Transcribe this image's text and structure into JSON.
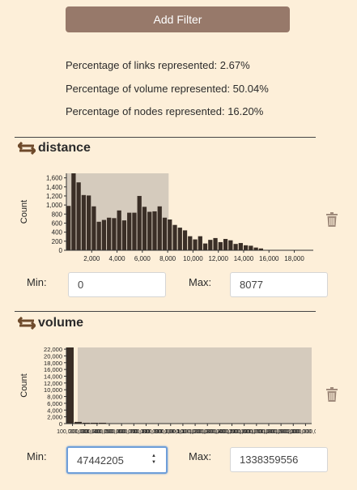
{
  "add_filter_label": "Add Filter",
  "stats": {
    "links": "Percentage of links represented: 2.67%",
    "volume": "Percentage of volume represented: 50.04%",
    "nodes": "Percentage of nodes represented: 16.20%"
  },
  "distance": {
    "title": "distance",
    "min_label": "Min:",
    "max_label": "Max:",
    "min_value": "0",
    "max_value": "8077",
    "selection_range": [
      0,
      8077
    ],
    "chart_data": {
      "type": "bar",
      "ylabel": "Count",
      "xlim": [
        0,
        19500
      ],
      "ylim": [
        0,
        1700
      ],
      "y_ticks": [
        0,
        200,
        400,
        600,
        800,
        1000,
        1200,
        1400,
        1600
      ],
      "y_tick_labels": [
        "0",
        "200",
        "400",
        "600",
        "800",
        "1,000",
        "1,200",
        "1,400",
        "1,600"
      ],
      "x_ticks": [
        2000,
        4000,
        6000,
        8000,
        10000,
        12000,
        14000,
        16000,
        18000
      ],
      "x_tick_labels": [
        "2,000",
        "4,000",
        "6,000",
        "8,000",
        "10,000",
        "12,000",
        "14,000",
        "16,000",
        "18,000"
      ],
      "bin_width": 400,
      "values": [
        980,
        1700,
        1500,
        1220,
        1210,
        970,
        630,
        670,
        720,
        710,
        880,
        660,
        830,
        830,
        1200,
        960,
        850,
        860,
        970,
        720,
        680,
        560,
        500,
        440,
        310,
        240,
        310,
        150,
        230,
        270,
        180,
        250,
        220,
        140,
        160,
        110,
        100,
        60,
        40
      ]
    }
  },
  "volume": {
    "title": "volume",
    "min_label": "Min:",
    "max_label": "Max:",
    "min_value": "47442205",
    "max_value": "1338359556",
    "chart_data": {
      "type": "bar",
      "ylabel": "Count",
      "ylim": [
        0,
        22500
      ],
      "y_ticks": [
        0,
        2000,
        4000,
        6000,
        8000,
        10000,
        12000,
        14000,
        16000,
        18000,
        20000,
        22000
      ],
      "y_tick_labels": [
        "0",
        "2,000",
        "4,000",
        "6,000",
        "8,000",
        "10,000",
        "12,000",
        "14,000",
        "16,000",
        "18,000",
        "20,000",
        "22,000"
      ],
      "x_tick_labels": [
        "100,000,000",
        "200,000,000",
        "300,000,000",
        "400,000,000",
        "500,000,000",
        "600,000,000",
        "700,000,000",
        "800,000,000",
        "900,000,000",
        "1,000,000,000",
        "1,100,000,000",
        "1,200,000,000",
        "1,300,000,000",
        "1,400,000,000",
        "1,500,000,000",
        "1,600,000,000",
        "1,700,000,000",
        "1,800,000,000",
        "1,900,000,000",
        "2,000,000,000"
      ],
      "values": [
        22500,
        500,
        60,
        20,
        10
      ]
    }
  }
}
